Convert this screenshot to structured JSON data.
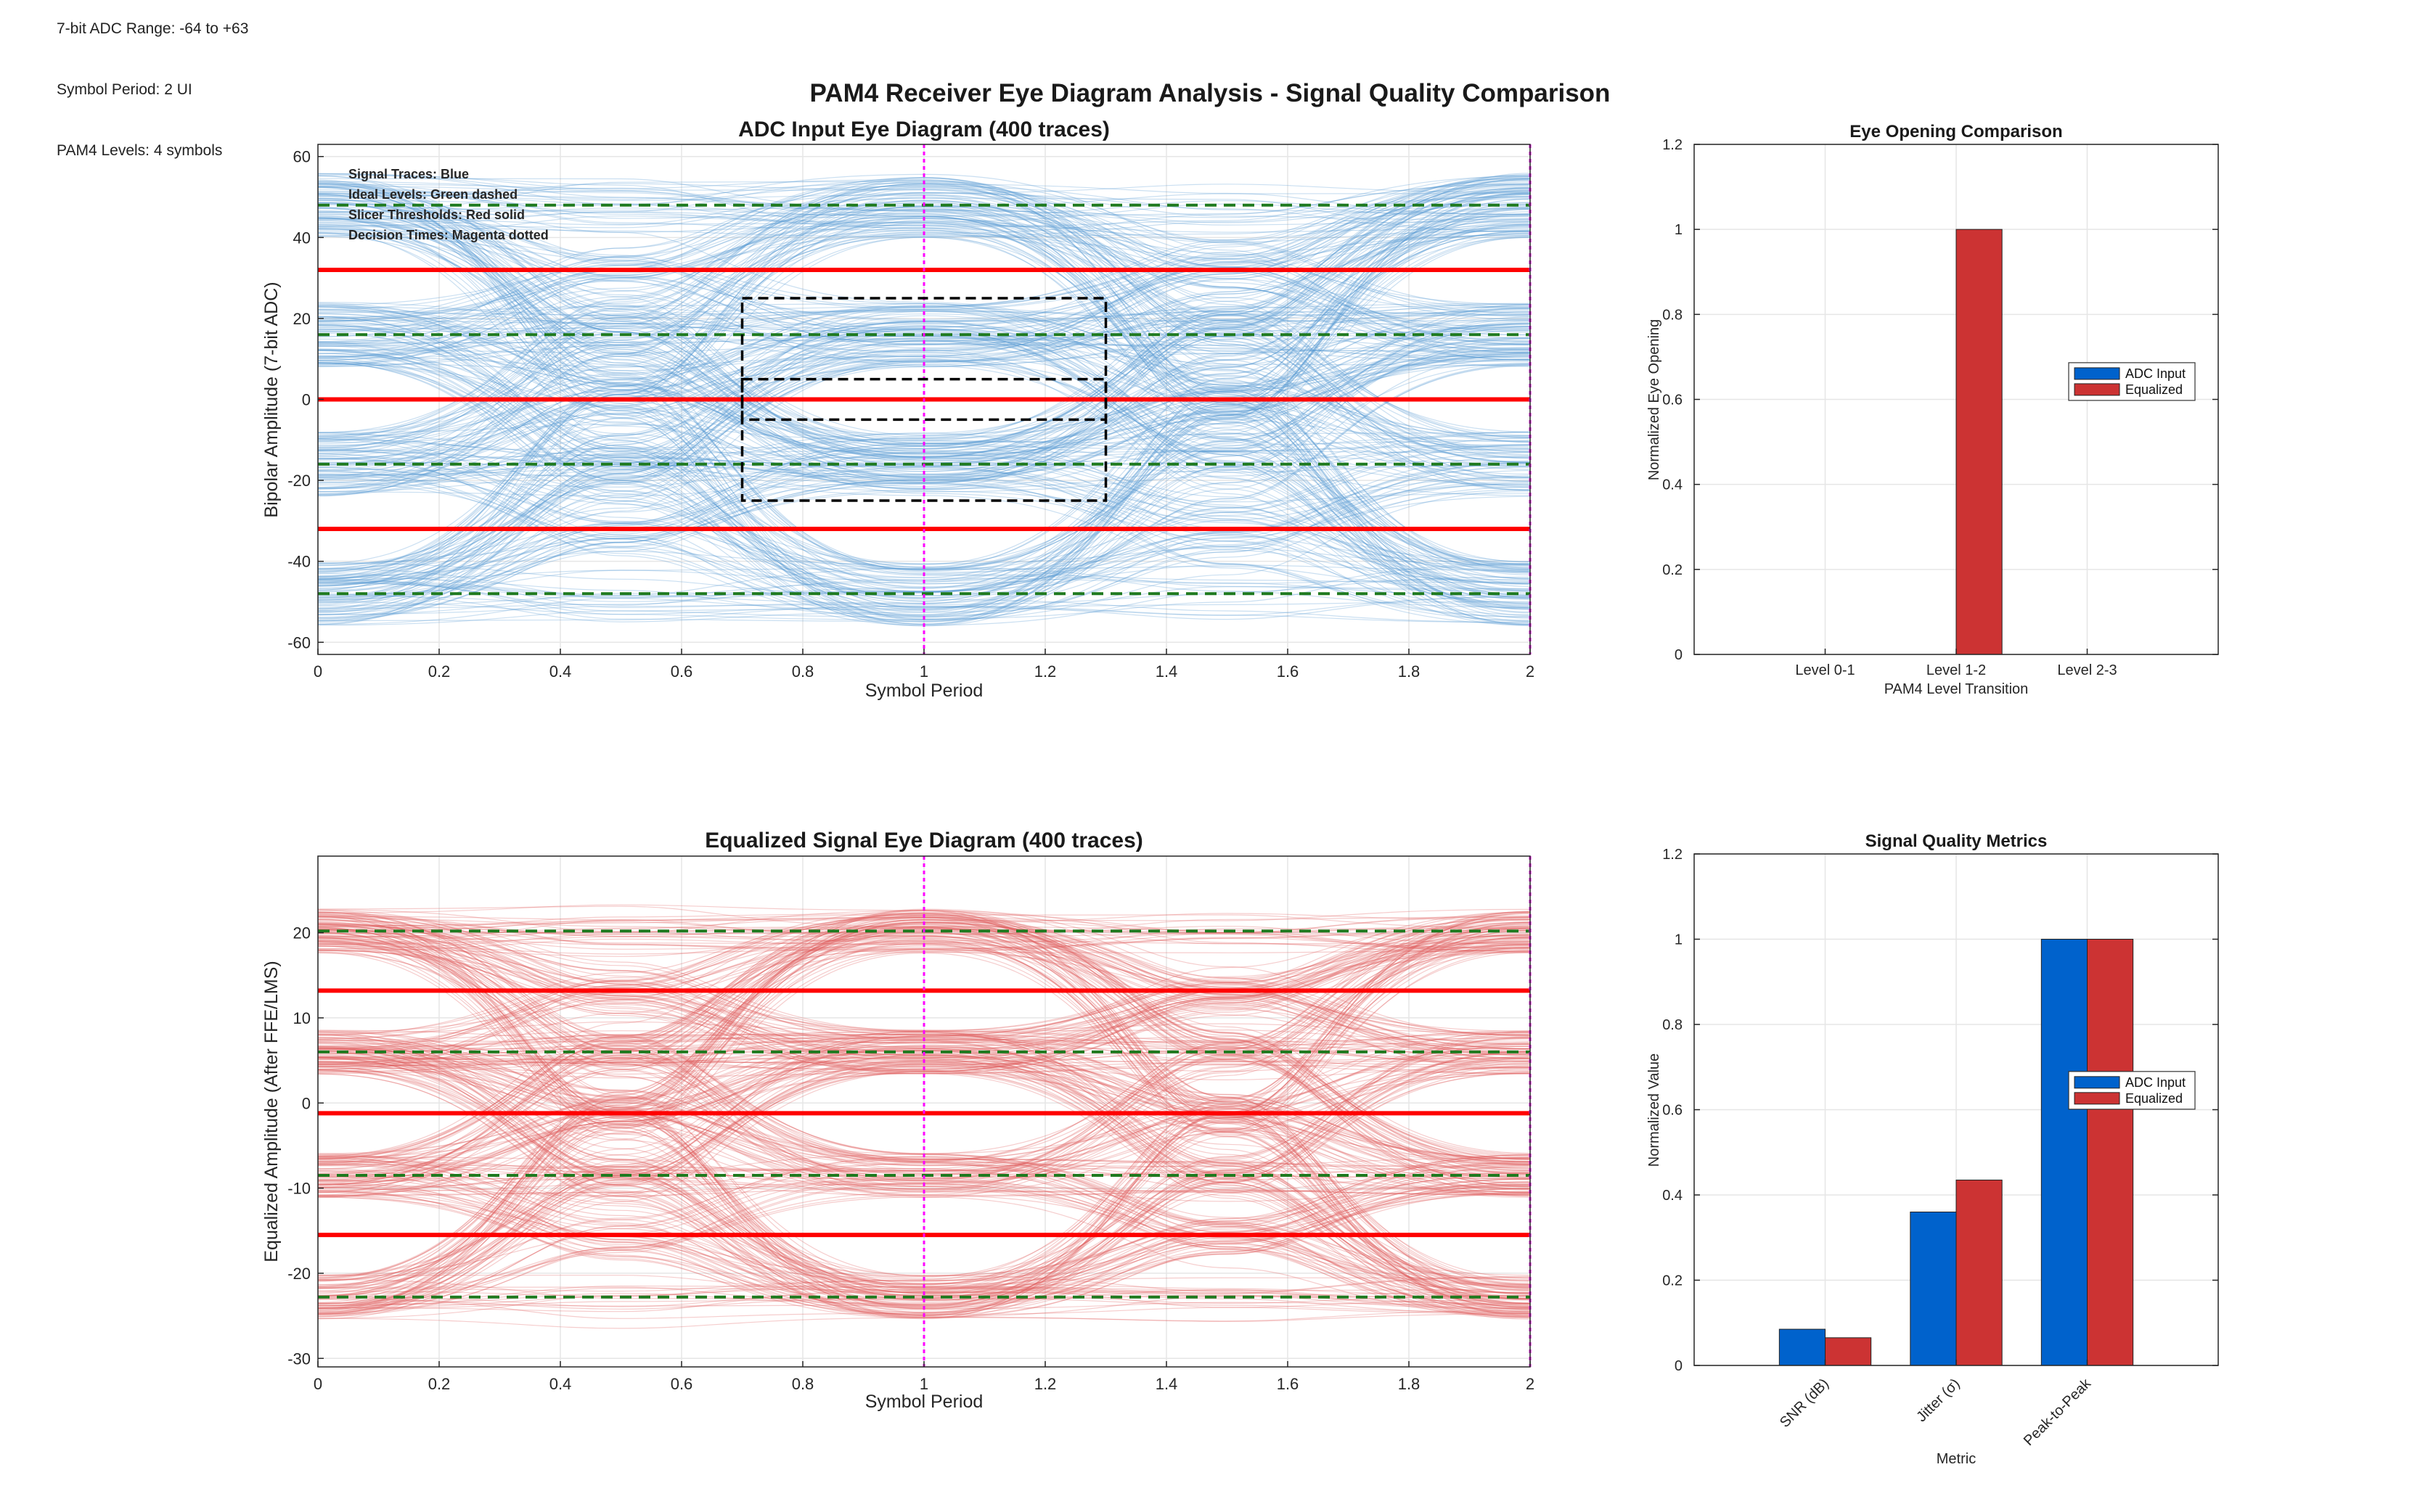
{
  "suptitle": "PAM4 Receiver Eye Diagram Analysis - Signal Quality Comparison",
  "info_notes": [
    "7-bit ADC Range: -64 to +63",
    "Symbol Period: 2 UI",
    "PAM4 Levels: 4 symbols"
  ],
  "colors": {
    "adc_traces": "#5b9bd5",
    "equalized_traces": "#e06060",
    "thresholds": "#ff0000",
    "ideal_levels": "#1f7a1f",
    "decision_times": "#ff00ff",
    "adc_bar": "#0062cc",
    "equalized_bar": "#cc3333",
    "grid": "#e6e6e6"
  },
  "chart_data": [
    {
      "id": "adc_eye",
      "type": "line",
      "title": "ADC Input Eye Diagram (400 traces)",
      "xlabel": "Symbol Period",
      "ylabel": "Bipolar Amplitude (7-bit ADC)",
      "xlim": [
        0,
        2
      ],
      "ylim": [
        -63,
        63
      ],
      "xticks": [
        0,
        0.2,
        0.4,
        0.6,
        0.8,
        1,
        1.2,
        1.4,
        1.6,
        1.8,
        2
      ],
      "xtick_labels": [
        "0",
        "0.2",
        "0.4",
        "0.6",
        "0.8",
        "1",
        "1.2",
        "1.4",
        "1.6",
        "1.8",
        "2"
      ],
      "yticks": [
        -60,
        -40,
        -20,
        0,
        20,
        40,
        60
      ],
      "ytick_labels": [
        "-60",
        "-40",
        "-20",
        "0",
        "20",
        "40",
        "60"
      ],
      "trace_count": 400,
      "trace_levels": [
        -48,
        -16,
        16,
        48
      ],
      "trace_noise": 8,
      "ideal_levels": [
        -48,
        -16,
        16,
        48
      ],
      "thresholds": [
        -32,
        0,
        32
      ],
      "decision_times": [
        1,
        2
      ],
      "eye_boxes": [
        {
          "x": [
            0.7,
            1.3
          ],
          "y": [
            -25,
            25
          ]
        },
        {
          "x": [
            0.7,
            1.3
          ],
          "y": [
            -5,
            5
          ]
        }
      ],
      "annotations": [
        {
          "text": "Signal Traces: Blue",
          "color": "#1060c0"
        },
        {
          "text": "Ideal Levels: Green dashed",
          "color": "#1f7a1f"
        },
        {
          "text": "Slicer Thresholds: Red solid",
          "color": "#e00000"
        },
        {
          "text": "Decision Times: Magenta dotted",
          "color": "#ff00ff"
        }
      ],
      "grid": true
    },
    {
      "id": "eq_eye",
      "type": "line",
      "title": "Equalized Signal Eye Diagram (400 traces)",
      "xlabel": "Symbol Period",
      "ylabel": "Equalized Amplitude (After FFE/LMS)",
      "xlim": [
        0,
        2
      ],
      "ylim": [
        -31,
        29
      ],
      "xticks": [
        0,
        0.2,
        0.4,
        0.6,
        0.8,
        1,
        1.2,
        1.4,
        1.6,
        1.8,
        2
      ],
      "xtick_labels": [
        "0",
        "0.2",
        "0.4",
        "0.6",
        "0.8",
        "1",
        "1.2",
        "1.4",
        "1.6",
        "1.8",
        "2"
      ],
      "yticks": [
        -30,
        -20,
        -10,
        0,
        10,
        20
      ],
      "ytick_labels": [
        "-30",
        "-20",
        "-10",
        "0",
        "10",
        "20"
      ],
      "trace_count": 400,
      "trace_levels": [
        -22.8,
        -8.5,
        6,
        20.2
      ],
      "trace_noise": 2.6,
      "ideal_levels": [
        -22.8,
        -8.5,
        6,
        20.2
      ],
      "thresholds": [
        -15.5,
        -1.2,
        13.2
      ],
      "decision_times": [
        1,
        2
      ],
      "eye_boxes": [],
      "annotations": [],
      "grid": true
    },
    {
      "id": "eye_opening",
      "type": "bar",
      "title": "Eye Opening Comparison",
      "xlabel": "PAM4 Level Transition",
      "ylabel": "Normalized Eye Opening",
      "categories": [
        "Level 0-1",
        "Level 1-2",
        "Level 2-3"
      ],
      "rotate_labels": false,
      "series": [
        {
          "name": "ADC Input",
          "values": [
            0,
            0,
            0
          ]
        },
        {
          "name": "Equalized",
          "values": [
            0,
            1,
            0
          ]
        }
      ],
      "ylim": [
        0,
        1.2
      ],
      "yticks": [
        0,
        0.2,
        0.4,
        0.6,
        0.8,
        1,
        1.2
      ],
      "ytick_labels": [
        "0",
        "0.2",
        "0.4",
        "0.6",
        "0.8",
        "1",
        "1.2"
      ],
      "legend_position": "right",
      "grid": true
    },
    {
      "id": "signal_quality",
      "type": "bar",
      "title": "Signal Quality Metrics",
      "xlabel": "Metric",
      "ylabel": "Normalized Value",
      "categories": [
        "SNR (dB)",
        "Jitter (σ)",
        "Peak-to-Peak"
      ],
      "rotate_labels": true,
      "series": [
        {
          "name": "ADC Input",
          "values": [
            0.085,
            0.36,
            1.0
          ]
        },
        {
          "name": "Equalized",
          "values": [
            0.065,
            0.435,
            1.0
          ]
        }
      ],
      "ylim": [
        0,
        1.2
      ],
      "yticks": [
        0,
        0.2,
        0.4,
        0.6,
        0.8,
        1,
        1.2
      ],
      "ytick_labels": [
        "0",
        "0.2",
        "0.4",
        "0.6",
        "0.8",
        "1",
        "1.2"
      ],
      "legend_position": "right",
      "grid": true
    }
  ]
}
